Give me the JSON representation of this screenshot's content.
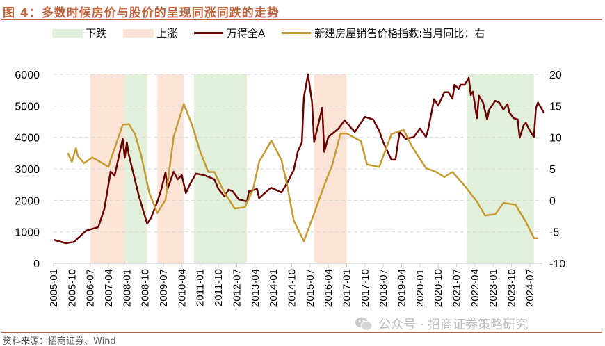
{
  "title": "图 4：多数时候房价与股价的呈现同涨同跌的走势",
  "source": "资料来源：招商证券、Wind",
  "watermark": "公众号 · 招商证券策略研究",
  "chart_data": {
    "type": "line",
    "title": "",
    "legend": [
      {
        "name": "下跌",
        "kind": "band",
        "color": "#E2EFDA"
      },
      {
        "name": "上涨",
        "kind": "band",
        "color": "#FBE3D6"
      },
      {
        "name": "万得全A",
        "kind": "line",
        "color": "#6B0000"
      },
      {
        "name": "新建房屋销售价格指数:当月同比：右",
        "kind": "line",
        "color": "#C49A33"
      }
    ],
    "legend_position": "top",
    "grid": "horizontal-dashed",
    "y_left": {
      "lim": [
        0,
        6000
      ],
      "ticks": [
        "0",
        "1000",
        "2000",
        "3000",
        "4000",
        "5000",
        "6000"
      ]
    },
    "y_right": {
      "lim": [
        -10,
        20
      ],
      "ticks": [
        "-10",
        "-5",
        "0",
        "5",
        "10",
        "15",
        "20"
      ]
    },
    "x_ticks": [
      "2005-01",
      "2005-10",
      "2006-07",
      "2007-04",
      "2008-01",
      "2008-10",
      "2009-07",
      "2010-04",
      "2011-01",
      "2011-10",
      "2012-07",
      "2013-04",
      "2014-01",
      "2014-10",
      "2015-07",
      "2016-04",
      "2017-01",
      "2017-10",
      "2018-07",
      "2019-04",
      "2020-01",
      "2020-10",
      "2021-07",
      "2022-04",
      "2023-01",
      "2023-10",
      "2024-07"
    ],
    "bands": [
      {
        "type": "上涨",
        "from": "2006-07",
        "to": "2007-12"
      },
      {
        "type": "下跌",
        "from": "2007-12",
        "to": "2008-11"
      },
      {
        "type": "上涨",
        "from": "2009-04",
        "to": "2010-05"
      },
      {
        "type": "下跌",
        "from": "2010-10",
        "to": "2012-12"
      },
      {
        "type": "上涨",
        "from": "2015-09",
        "to": "2017-01"
      },
      {
        "type": "下跌",
        "from": "2021-12",
        "to": "2024-09"
      }
    ],
    "series": [
      {
        "name": "万得全A",
        "axis": "left",
        "points": [
          [
            "2005-01",
            750
          ],
          [
            "2005-07",
            640
          ],
          [
            "2005-11",
            680
          ],
          [
            "2006-05",
            1040
          ],
          [
            "2006-11",
            1150
          ],
          [
            "2007-02",
            1740
          ],
          [
            "2007-05",
            2910
          ],
          [
            "2007-07",
            2780
          ],
          [
            "2007-11",
            3950
          ],
          [
            "2007-12",
            3350
          ],
          [
            "2008-01",
            3840
          ],
          [
            "2008-02",
            3440
          ],
          [
            "2008-04",
            2910
          ],
          [
            "2008-07",
            2120
          ],
          [
            "2008-11",
            1260
          ],
          [
            "2009-01",
            1460
          ],
          [
            "2009-04",
            1960
          ],
          [
            "2009-06",
            2360
          ],
          [
            "2009-08",
            2890
          ],
          [
            "2009-09",
            2360
          ],
          [
            "2009-12",
            2910
          ],
          [
            "2010-02",
            2670
          ],
          [
            "2010-04",
            2800
          ],
          [
            "2010-06",
            2230
          ],
          [
            "2010-08",
            2510
          ],
          [
            "2010-11",
            2850
          ],
          [
            "2011-03",
            2800
          ],
          [
            "2011-08",
            2670
          ],
          [
            "2011-10",
            2360
          ],
          [
            "2012-01",
            2120
          ],
          [
            "2012-03",
            2340
          ],
          [
            "2012-05",
            2290
          ],
          [
            "2012-08",
            2030
          ],
          [
            "2012-12",
            1960
          ],
          [
            "2013-01",
            2290
          ],
          [
            "2013-05",
            2360
          ],
          [
            "2013-06",
            2070
          ],
          [
            "2013-11",
            2360
          ],
          [
            "2013-12",
            2400
          ],
          [
            "2014-05",
            2250
          ],
          [
            "2014-08",
            2580
          ],
          [
            "2014-11",
            2960
          ],
          [
            "2015-01",
            3550
          ],
          [
            "2015-03",
            3840
          ],
          [
            "2015-04",
            5270
          ],
          [
            "2015-06",
            6000
          ],
          [
            "2015-08",
            5120
          ],
          [
            "2015-09",
            3850
          ],
          [
            "2015-11",
            4390
          ],
          [
            "2016-01",
            4940
          ],
          [
            "2016-02",
            3540
          ],
          [
            "2016-04",
            4010
          ],
          [
            "2016-09",
            4280
          ],
          [
            "2016-12",
            4540
          ],
          [
            "2017-02",
            4390
          ],
          [
            "2017-05",
            4170
          ],
          [
            "2017-10",
            4650
          ],
          [
            "2018-02",
            4570
          ],
          [
            "2018-05",
            4210
          ],
          [
            "2018-07",
            3840
          ],
          [
            "2018-11",
            3290
          ],
          [
            "2019-01",
            3290
          ],
          [
            "2019-03",
            4170
          ],
          [
            "2019-06",
            3950
          ],
          [
            "2019-10",
            4010
          ],
          [
            "2020-01",
            4280
          ],
          [
            "2020-04",
            4010
          ],
          [
            "2020-05",
            4240
          ],
          [
            "2020-08",
            5210
          ],
          [
            "2020-10",
            5010
          ],
          [
            "2021-01",
            5430
          ],
          [
            "2021-03",
            5430
          ],
          [
            "2021-05",
            5230
          ],
          [
            "2021-06",
            5670
          ],
          [
            "2021-08",
            5540
          ],
          [
            "2021-09",
            5670
          ],
          [
            "2021-11",
            5670
          ],
          [
            "2022-01",
            5890
          ],
          [
            "2022-02",
            5340
          ],
          [
            "2022-03",
            5450
          ],
          [
            "2022-05",
            4610
          ],
          [
            "2022-06",
            5320
          ],
          [
            "2022-08",
            5100
          ],
          [
            "2022-10",
            4570
          ],
          [
            "2022-11",
            4880
          ],
          [
            "2023-02",
            5160
          ],
          [
            "2023-04",
            5100
          ],
          [
            "2023-06",
            4880
          ],
          [
            "2023-08",
            5050
          ],
          [
            "2023-09",
            4790
          ],
          [
            "2023-11",
            4610
          ],
          [
            "2024-01",
            4570
          ],
          [
            "2024-02",
            3990
          ],
          [
            "2024-04",
            4390
          ],
          [
            "2024-05",
            4460
          ],
          [
            "2024-07",
            4210
          ],
          [
            "2024-09",
            4010
          ],
          [
            "2024-10",
            4940
          ],
          [
            "2024-11",
            5100
          ],
          [
            "2025-02",
            4770
          ]
        ]
      },
      {
        "name": "新建房屋销售价格指数:当月同比：右",
        "axis": "right",
        "points": [
          [
            "2005-08",
            7.5
          ],
          [
            "2005-10",
            6.1
          ],
          [
            "2005-12",
            8.3
          ],
          [
            "2006-01",
            7.0
          ],
          [
            "2006-04",
            5.9
          ],
          [
            "2006-08",
            6.8
          ],
          [
            "2006-12",
            6.1
          ],
          [
            "2007-04",
            5.3
          ],
          [
            "2007-05",
            6.4
          ],
          [
            "2007-11",
            12.0
          ],
          [
            "2008-02",
            12.1
          ],
          [
            "2008-05",
            10.5
          ],
          [
            "2008-08",
            7.2
          ],
          [
            "2008-12",
            1.2
          ],
          [
            "2009-04",
            -2.0
          ],
          [
            "2009-08",
            0.1
          ],
          [
            "2009-12",
            10.1
          ],
          [
            "2010-05",
            15.3
          ],
          [
            "2010-09",
            12.0
          ],
          [
            "2011-01",
            7.8
          ],
          [
            "2011-05",
            4.5
          ],
          [
            "2011-08",
            4.5
          ],
          [
            "2012-01",
            1.2
          ],
          [
            "2012-06",
            -1.3
          ],
          [
            "2012-11",
            -1.1
          ],
          [
            "2013-03",
            1.7
          ],
          [
            "2013-06",
            6.1
          ],
          [
            "2013-12",
            9.5
          ],
          [
            "2014-05",
            6.4
          ],
          [
            "2014-08",
            2.0
          ],
          [
            "2014-11",
            -3.2
          ],
          [
            "2015-04",
            -6.5
          ],
          [
            "2015-09",
            -2.1
          ],
          [
            "2016-02",
            2.4
          ],
          [
            "2016-06",
            5.7
          ],
          [
            "2016-10",
            10.6
          ],
          [
            "2017-01",
            10.6
          ],
          [
            "2017-08",
            9.4
          ],
          [
            "2017-11",
            5.7
          ],
          [
            "2018-05",
            5.3
          ],
          [
            "2018-08",
            7.9
          ],
          [
            "2018-11",
            10.5
          ],
          [
            "2019-05",
            11.2
          ],
          [
            "2019-09",
            8.6
          ],
          [
            "2020-04",
            5.1
          ],
          [
            "2020-09",
            4.5
          ],
          [
            "2021-01",
            3.7
          ],
          [
            "2021-05",
            4.5
          ],
          [
            "2021-11",
            2.3
          ],
          [
            "2022-05",
            -0.2
          ],
          [
            "2022-09",
            -2.4
          ],
          [
            "2023-02",
            -2.2
          ],
          [
            "2023-06",
            -0.4
          ],
          [
            "2023-12",
            -0.7
          ],
          [
            "2024-05",
            -3.4
          ],
          [
            "2024-09",
            -6.0
          ],
          [
            "2024-11",
            -6.0
          ]
        ]
      }
    ]
  }
}
